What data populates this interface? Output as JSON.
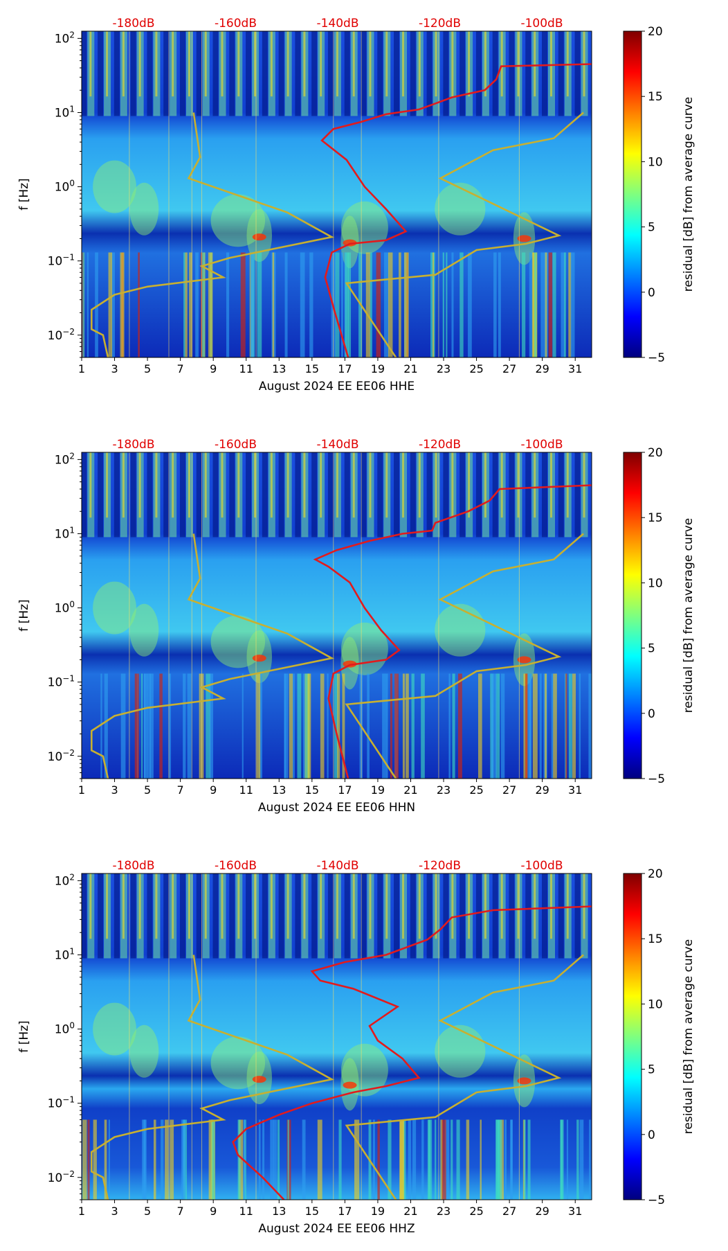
{
  "chart_data": [
    {
      "type": "heatmap",
      "component": "HHE",
      "xlabel": "August 2024 EE EE06  HHE",
      "ylabel": "f [Hz]",
      "x_ticks": [
        "1",
        "3",
        "5",
        "7",
        "9",
        "11",
        "13",
        "15",
        "17",
        "19",
        "21",
        "23",
        "25",
        "27",
        "29",
        "31"
      ],
      "y_ticks": [
        "10^-2",
        "10^-1",
        "10^0",
        "10^1",
        "10^2"
      ],
      "xlim": [
        1,
        32
      ],
      "ylim_hz": [
        0.005,
        125
      ],
      "top_labels": [
        "-180dB",
        "-160dB",
        "-140dB",
        "-120dB",
        "-100dB"
      ],
      "colorbar": {
        "label": "residual [dB] from average curve",
        "ticks": [
          "20",
          "15",
          "10",
          "5",
          "0",
          "−5"
        ],
        "range": [
          -5,
          20
        ]
      },
      "red_curve": [
        {
          "day": 17.2,
          "f": 0.005
        },
        {
          "day": 16.4,
          "f": 0.02
        },
        {
          "day": 15.8,
          "f": 0.06
        },
        {
          "day": 16.2,
          "f": 0.13
        },
        {
          "day": 17.3,
          "f": 0.17
        },
        {
          "day": 19.5,
          "f": 0.19
        },
        {
          "day": 20.7,
          "f": 0.25
        },
        {
          "day": 19.5,
          "f": 0.5
        },
        {
          "day": 18.2,
          "f": 1.0
        },
        {
          "day": 17.1,
          "f": 2.3
        },
        {
          "day": 15.6,
          "f": 4.2
        },
        {
          "day": 16.3,
          "f": 6
        },
        {
          "day": 18.0,
          "f": 7.5
        },
        {
          "day": 19.5,
          "f": 9.5
        },
        {
          "day": 21.5,
          "f": 11
        },
        {
          "day": 22.4,
          "f": 13
        },
        {
          "day": 23.5,
          "f": 16
        },
        {
          "day": 25.5,
          "f": 20
        },
        {
          "day": 26.2,
          "f": 28
        },
        {
          "day": 26.5,
          "f": 42
        },
        {
          "day": 32,
          "f": 45
        }
      ],
      "yellow_curve_low": [
        {
          "day": 2.6,
          "f": 0.005
        },
        {
          "day": 2.3,
          "f": 0.01
        },
        {
          "day": 1.6,
          "f": 0.012
        },
        {
          "day": 1.6,
          "f": 0.022
        },
        {
          "day": 3,
          "f": 0.035
        },
        {
          "day": 5,
          "f": 0.045
        },
        {
          "day": 9.6,
          "f": 0.06
        },
        {
          "day": 8.3,
          "f": 0.085
        },
        {
          "day": 10,
          "f": 0.11
        },
        {
          "day": 16.2,
          "f": 0.21
        },
        {
          "day": 13.5,
          "f": 0.45
        },
        {
          "day": 7.5,
          "f": 1.3
        },
        {
          "day": 8.2,
          "f": 2.5
        },
        {
          "day": 7.8,
          "f": 10
        }
      ],
      "yellow_curve_high": [
        {
          "day": 20.1,
          "f": 0.005
        },
        {
          "day": 17.1,
          "f": 0.05
        },
        {
          "day": 22.5,
          "f": 0.065
        },
        {
          "day": 25,
          "f": 0.14
        },
        {
          "day": 28,
          "f": 0.17
        },
        {
          "day": 30,
          "f": 0.22
        },
        {
          "day": 22.8,
          "f": 1.3
        },
        {
          "day": 26,
          "f": 3.1
        },
        {
          "day": 29.7,
          "f": 4.5
        },
        {
          "day": 31.5,
          "f": 10
        }
      ]
    },
    {
      "type": "heatmap",
      "component": "HHN",
      "xlabel": "August 2024 EE EE06  HHN",
      "ylabel": "f [Hz]",
      "x_ticks": [
        "1",
        "3",
        "5",
        "7",
        "9",
        "11",
        "13",
        "15",
        "17",
        "19",
        "21",
        "23",
        "25",
        "27",
        "29",
        "31"
      ],
      "y_ticks": [
        "10^-2",
        "10^-1",
        "10^0",
        "10^1",
        "10^2"
      ],
      "xlim": [
        1,
        32
      ],
      "ylim_hz": [
        0.005,
        125
      ],
      "top_labels": [
        "-180dB",
        "-160dB",
        "-140dB",
        "-120dB",
        "-100dB"
      ],
      "colorbar": {
        "label": "residual [dB] from average curve",
        "ticks": [
          "20",
          "15",
          "10",
          "5",
          "0",
          "−5"
        ],
        "range": [
          -5,
          20
        ]
      },
      "red_curve": [
        {
          "day": 17.2,
          "f": 0.005
        },
        {
          "day": 16.5,
          "f": 0.02
        },
        {
          "day": 16,
          "f": 0.06
        },
        {
          "day": 16.3,
          "f": 0.13
        },
        {
          "day": 17.3,
          "f": 0.17
        },
        {
          "day": 19.5,
          "f": 0.2
        },
        {
          "day": 20.3,
          "f": 0.27
        },
        {
          "day": 19.2,
          "f": 0.5
        },
        {
          "day": 18.2,
          "f": 1.0
        },
        {
          "day": 17.3,
          "f": 2.2
        },
        {
          "day": 16,
          "f": 3.6
        },
        {
          "day": 15.2,
          "f": 4.5
        },
        {
          "day": 16.5,
          "f": 6
        },
        {
          "day": 18.5,
          "f": 8
        },
        {
          "day": 20.5,
          "f": 10
        },
        {
          "day": 22.3,
          "f": 11
        },
        {
          "day": 22.5,
          "f": 14
        },
        {
          "day": 24.5,
          "f": 20
        },
        {
          "day": 25.8,
          "f": 28
        },
        {
          "day": 26.4,
          "f": 40
        },
        {
          "day": 32,
          "f": 45
        }
      ],
      "yellow_curve_low": [
        {
          "day": 2.6,
          "f": 0.005
        },
        {
          "day": 2.3,
          "f": 0.01
        },
        {
          "day": 1.6,
          "f": 0.012
        },
        {
          "day": 1.6,
          "f": 0.022
        },
        {
          "day": 3,
          "f": 0.035
        },
        {
          "day": 5,
          "f": 0.045
        },
        {
          "day": 9.6,
          "f": 0.06
        },
        {
          "day": 8.3,
          "f": 0.085
        },
        {
          "day": 10,
          "f": 0.11
        },
        {
          "day": 16.2,
          "f": 0.21
        },
        {
          "day": 13.5,
          "f": 0.45
        },
        {
          "day": 7.5,
          "f": 1.3
        },
        {
          "day": 8.2,
          "f": 2.5
        },
        {
          "day": 7.8,
          "f": 10
        }
      ],
      "yellow_curve_high": [
        {
          "day": 20.1,
          "f": 0.005
        },
        {
          "day": 17.1,
          "f": 0.05
        },
        {
          "day": 22.5,
          "f": 0.065
        },
        {
          "day": 25,
          "f": 0.14
        },
        {
          "day": 28,
          "f": 0.17
        },
        {
          "day": 30,
          "f": 0.22
        },
        {
          "day": 22.8,
          "f": 1.3
        },
        {
          "day": 26,
          "f": 3.1
        },
        {
          "day": 29.7,
          "f": 4.5
        },
        {
          "day": 31.5,
          "f": 10
        }
      ]
    },
    {
      "type": "heatmap",
      "component": "HHZ",
      "xlabel": "August 2024 EE EE06  HHZ",
      "ylabel": "f [Hz]",
      "x_ticks": [
        "1",
        "3",
        "5",
        "7",
        "9",
        "11",
        "13",
        "15",
        "17",
        "19",
        "21",
        "23",
        "25",
        "27",
        "29",
        "31"
      ],
      "y_ticks": [
        "10^-2",
        "10^-1",
        "10^0",
        "10^1",
        "10^2"
      ],
      "xlim": [
        1,
        32
      ],
      "ylim_hz": [
        0.005,
        125
      ],
      "top_labels": [
        "-180dB",
        "-160dB",
        "-140dB",
        "-120dB",
        "-100dB"
      ],
      "colorbar": {
        "label": "residual [dB] from average curve",
        "ticks": [
          "20",
          "15",
          "10",
          "5",
          "0",
          "−5"
        ],
        "range": [
          -5,
          20
        ]
      },
      "red_curve": [
        {
          "day": 13.3,
          "f": 0.005
        },
        {
          "day": 12,
          "f": 0.01
        },
        {
          "day": 10.5,
          "f": 0.02
        },
        {
          "day": 10.2,
          "f": 0.03
        },
        {
          "day": 11,
          "f": 0.045
        },
        {
          "day": 13,
          "f": 0.07
        },
        {
          "day": 15,
          "f": 0.1
        },
        {
          "day": 17.5,
          "f": 0.14
        },
        {
          "day": 19.5,
          "f": 0.17
        },
        {
          "day": 21.5,
          "f": 0.22
        },
        {
          "day": 20.5,
          "f": 0.4
        },
        {
          "day": 19,
          "f": 0.7
        },
        {
          "day": 18.5,
          "f": 1.1
        },
        {
          "day": 20.2,
          "f": 2.0
        },
        {
          "day": 17.5,
          "f": 3.5
        },
        {
          "day": 15.5,
          "f": 4.5
        },
        {
          "day": 15,
          "f": 6
        },
        {
          "day": 17,
          "f": 8
        },
        {
          "day": 19.5,
          "f": 10
        },
        {
          "day": 22,
          "f": 16
        },
        {
          "day": 22.8,
          "f": 22
        },
        {
          "day": 23.5,
          "f": 32
        },
        {
          "day": 26,
          "f": 40
        },
        {
          "day": 32,
          "f": 45
        }
      ],
      "yellow_curve_low": [
        {
          "day": 2.6,
          "f": 0.005
        },
        {
          "day": 2.3,
          "f": 0.01
        },
        {
          "day": 1.6,
          "f": 0.012
        },
        {
          "day": 1.6,
          "f": 0.022
        },
        {
          "day": 3,
          "f": 0.035
        },
        {
          "day": 5,
          "f": 0.045
        },
        {
          "day": 9.6,
          "f": 0.06
        },
        {
          "day": 8.3,
          "f": 0.085
        },
        {
          "day": 10,
          "f": 0.11
        },
        {
          "day": 16.2,
          "f": 0.21
        },
        {
          "day": 13.5,
          "f": 0.45
        },
        {
          "day": 7.5,
          "f": 1.3
        },
        {
          "day": 8.2,
          "f": 2.5
        },
        {
          "day": 7.8,
          "f": 10
        }
      ],
      "yellow_curve_high": [
        {
          "day": 20.1,
          "f": 0.005
        },
        {
          "day": 17.1,
          "f": 0.05
        },
        {
          "day": 22.5,
          "f": 0.065
        },
        {
          "day": 25,
          "f": 0.14
        },
        {
          "day": 28,
          "f": 0.17
        },
        {
          "day": 30,
          "f": 0.22
        },
        {
          "day": 22.8,
          "f": 1.3
        },
        {
          "day": 26,
          "f": 3.1
        },
        {
          "day": 29.7,
          "f": 4.5
        },
        {
          "day": 31.5,
          "f": 10
        }
      ]
    }
  ],
  "colors": {
    "red_curve": "#e31a1c",
    "yellow_curve": "#c8b030",
    "top_label": "#e00000"
  }
}
